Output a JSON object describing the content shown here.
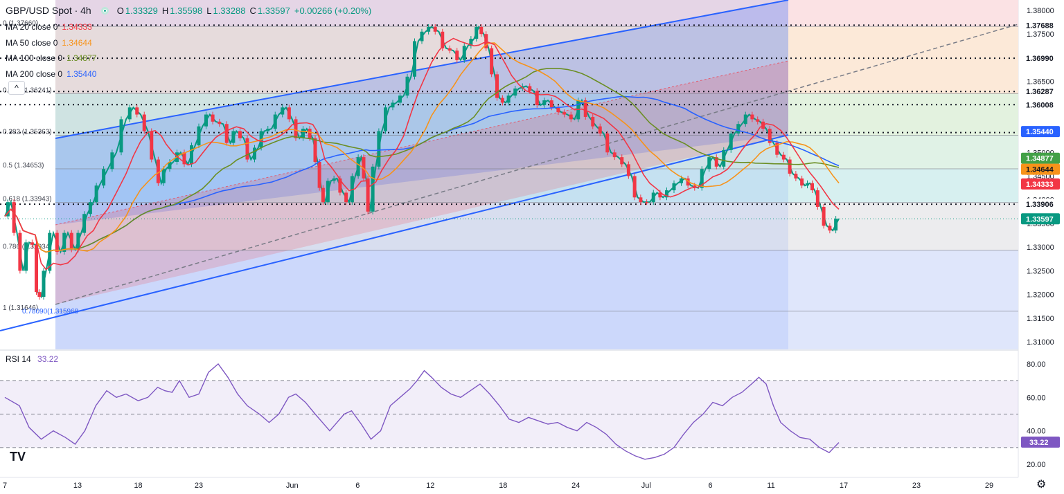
{
  "header": {
    "symbol": "GBP/USD Spot · 4h",
    "ohlc": [
      {
        "k": "O",
        "v": "1.33329"
      },
      {
        "k": "H",
        "v": "1.35598"
      },
      {
        "k": "L",
        "v": "1.33288"
      },
      {
        "k": "C",
        "v": "1.33597"
      },
      {
        "k": "",
        "v": "+0.00266 (+0.20%)"
      }
    ]
  },
  "ma_legend": [
    {
      "label": "MA 20 close 0",
      "value": "1.34333",
      "color": "#f23645"
    },
    {
      "label": "MA 50 close 0",
      "value": "1.34644",
      "color": "#f7931a"
    },
    {
      "label": "MA 100 close 0",
      "value": "1.34877",
      "color": "#6b8e23"
    },
    {
      "label": "MA 200 close 0",
      "value": "1.35440",
      "color": "#2962ff"
    }
  ],
  "rsi_label": {
    "label": "RSI 14",
    "value": "33.22"
  },
  "tv_logo": "TV",
  "collapse_icon": "^",
  "gear_icon": "⚙",
  "chart_data": {
    "type": "candlestick",
    "symbol": "GBP/USD Spot",
    "interval": "4h",
    "price_axis": {
      "min": 1.305,
      "max": 1.3825,
      "ticks": [
        "1.38000",
        "1.37500",
        "1.36500",
        "1.36000",
        "1.35500",
        "1.35000",
        "1.34500",
        "1.34000",
        "1.33500",
        "1.33000",
        "1.32500",
        "1.32000",
        "1.31500",
        "1.31000"
      ]
    },
    "time_ticks": [
      {
        "label": "7",
        "x": 0
      },
      {
        "label": "13",
        "x": 60
      },
      {
        "label": "18",
        "x": 110
      },
      {
        "label": "23",
        "x": 160
      },
      {
        "label": "Jun",
        "x": 237
      },
      {
        "label": "6",
        "x": 291
      },
      {
        "label": "12",
        "x": 351
      },
      {
        "label": "18",
        "x": 411
      },
      {
        "label": "24",
        "x": 471
      },
      {
        "label": "Jul",
        "x": 529
      },
      {
        "label": "6",
        "x": 582
      },
      {
        "label": "11",
        "x": 632
      },
      {
        "label": "17",
        "x": 692
      },
      {
        "label": "23",
        "x": 752
      },
      {
        "label": "29",
        "x": 812
      }
    ],
    "x_range": [
      0,
      850
    ],
    "price_path": [
      [
        0,
        1.3365
      ],
      [
        5,
        1.3395
      ],
      [
        10,
        1.333
      ],
      [
        15,
        1.325
      ],
      [
        20,
        1.331
      ],
      [
        25,
        1.3305
      ],
      [
        27,
        1.3205
      ],
      [
        30,
        1.3195
      ],
      [
        34,
        1.325
      ],
      [
        40,
        1.333
      ],
      [
        46,
        1.329
      ],
      [
        52,
        1.333
      ],
      [
        58,
        1.3295
      ],
      [
        63,
        1.333
      ],
      [
        68,
        1.337
      ],
      [
        73,
        1.3395
      ],
      [
        78,
        1.343
      ],
      [
        85,
        1.3465
      ],
      [
        92,
        1.35
      ],
      [
        100,
        1.357
      ],
      [
        106,
        1.3595
      ],
      [
        112,
        1.358
      ],
      [
        118,
        1.3545
      ],
      [
        124,
        1.3485
      ],
      [
        129,
        1.3435
      ],
      [
        133,
        1.3465
      ],
      [
        139,
        1.348
      ],
      [
        145,
        1.35
      ],
      [
        151,
        1.3475
      ],
      [
        157,
        1.3515
      ],
      [
        163,
        1.3555
      ],
      [
        169,
        1.358
      ],
      [
        174,
        1.3565
      ],
      [
        180,
        1.356
      ],
      [
        186,
        1.352
      ],
      [
        191,
        1.3545
      ],
      [
        197,
        1.353
      ],
      [
        203,
        1.3485
      ],
      [
        209,
        1.351
      ],
      [
        214,
        1.3545
      ],
      [
        220,
        1.355
      ],
      [
        226,
        1.358
      ],
      [
        232,
        1.3595
      ],
      [
        237,
        1.357
      ],
      [
        243,
        1.353
      ],
      [
        249,
        1.355
      ],
      [
        254,
        1.353
      ],
      [
        258,
        1.348
      ],
      [
        261,
        1.3425
      ],
      [
        264,
        1.3395
      ],
      [
        269,
        1.344
      ],
      [
        274,
        1.3445
      ],
      [
        279,
        1.3415
      ],
      [
        284,
        1.3395
      ],
      [
        289,
        1.345
      ],
      [
        294,
        1.349
      ],
      [
        298,
        1.3445
      ],
      [
        301,
        1.3375
      ],
      [
        306,
        1.347
      ],
      [
        311,
        1.3545
      ],
      [
        317,
        1.3595
      ],
      [
        323,
        1.3605
      ],
      [
        329,
        1.362
      ],
      [
        335,
        1.366
      ],
      [
        341,
        1.3735
      ],
      [
        347,
        1.3755
      ],
      [
        352,
        1.3765
      ],
      [
        358,
        1.3755
      ],
      [
        364,
        1.372
      ],
      [
        370,
        1.3715
      ],
      [
        376,
        1.3695
      ],
      [
        382,
        1.3725
      ],
      [
        387,
        1.374
      ],
      [
        391,
        1.3765
      ],
      [
        395,
        1.375
      ],
      [
        399,
        1.372
      ],
      [
        404,
        1.3665
      ],
      [
        408,
        1.3615
      ],
      [
        413,
        1.3605
      ],
      [
        418,
        1.362
      ],
      [
        424,
        1.3635
      ],
      [
        430,
        1.364
      ],
      [
        436,
        1.363
      ],
      [
        442,
        1.36
      ],
      [
        448,
        1.361
      ],
      [
        454,
        1.3595
      ],
      [
        459,
        1.3585
      ],
      [
        464,
        1.358
      ],
      [
        470,
        1.357
      ],
      [
        476,
        1.361
      ],
      [
        482,
        1.3575
      ],
      [
        488,
        1.3555
      ],
      [
        494,
        1.354
      ],
      [
        500,
        1.35
      ],
      [
        506,
        1.349
      ],
      [
        512,
        1.3475
      ],
      [
        517,
        1.345
      ],
      [
        522,
        1.3405
      ],
      [
        527,
        1.3395
      ],
      [
        532,
        1.3395
      ],
      [
        538,
        1.3415
      ],
      [
        543,
        1.3405
      ],
      [
        549,
        1.342
      ],
      [
        555,
        1.3435
      ],
      [
        561,
        1.3445
      ],
      [
        566,
        1.343
      ],
      [
        572,
        1.3425
      ],
      [
        578,
        1.3465
      ],
      [
        584,
        1.349
      ],
      [
        590,
        1.347
      ],
      [
        596,
        1.3505
      ],
      [
        602,
        1.354
      ],
      [
        608,
        1.356
      ],
      [
        614,
        1.358
      ],
      [
        619,
        1.357
      ],
      [
        623,
        1.3565
      ],
      [
        628,
        1.355
      ],
      [
        634,
        1.352
      ],
      [
        640,
        1.3495
      ],
      [
        645,
        1.3485
      ],
      [
        650,
        1.3455
      ],
      [
        655,
        1.3445
      ],
      [
        660,
        1.343
      ],
      [
        664,
        1.3435
      ],
      [
        668,
        1.342
      ],
      [
        673,
        1.3385
      ],
      [
        678,
        1.3345
      ],
      [
        683,
        1.3335
      ],
      [
        688,
        1.336
      ]
    ],
    "ma_series": [
      {
        "name": "MA 20 close 0",
        "value": "1.34333",
        "color": "#f23645"
      },
      {
        "name": "MA 50 close 0",
        "value": "1.34644",
        "color": "#f7931a"
      },
      {
        "name": "MA 100 close 0",
        "value": "1.34877",
        "color": "#6b8e23"
      },
      {
        "name": "MA 200 close 0",
        "value": "1.35440",
        "color": "#2962ff"
      }
    ],
    "fibonacci": {
      "levels": [
        {
          "label": "0 (1.37660)",
          "price": 1.3766,
          "fill": "#fbe2e4"
        },
        {
          "label": "0.236 (1.36241)",
          "price": 1.36241,
          "fill": "#fce9d8"
        },
        {
          "label": "0.382 (1.35363)",
          "price": 1.35363,
          "fill": "#e3f2df"
        },
        {
          "label": "0.5 (1.34653)",
          "price": 1.34653,
          "fill": "#e0f2e6"
        },
        {
          "label": "0.618 (1.33943)",
          "price": 1.33943,
          "fill": "#d7f0f0"
        },
        {
          "label": "0.786 (1.32934)",
          "price": 1.32934,
          "fill": "#ececee"
        },
        {
          "label": "1 (1.31646)",
          "price": 1.31646,
          "fill": "#dfe6fb"
        }
      ],
      "extra_label": "0.78090(1.315968"
    },
    "horizontal_levels": [
      {
        "value": "1.37688",
        "price": 1.37688
      },
      {
        "value": "1.36990",
        "price": 1.3699
      },
      {
        "value": "1.36287",
        "price": 1.36287
      },
      {
        "value": "1.36008",
        "price": 1.36008
      },
      {
        "value": "1.35419",
        "price": 1.35419
      },
      {
        "value": "1.33906",
        "price": 1.33906
      }
    ],
    "price_labels": [
      {
        "value": "1.35440",
        "price": 1.3544,
        "bg": "#2962ff",
        "fg": "#ffffff"
      },
      {
        "value": "1.34877",
        "price": 1.34877,
        "bg": "#43a047",
        "fg": "#ffffff"
      },
      {
        "value": "1.34644",
        "price": 1.34644,
        "bg": "#f7931a",
        "fg": "#131722"
      },
      {
        "value": "1.34333",
        "price": 1.34333,
        "bg": "#f23645",
        "fg": "#ffffff"
      },
      {
        "value": "1.33597",
        "price": 1.33597,
        "bg": "#089981",
        "fg": "#ffffff"
      }
    ],
    "rsi": {
      "name": "RSI 14",
      "current": 33.22,
      "axis_ticks": [
        80,
        60,
        40,
        20
      ],
      "band": [
        30,
        70
      ],
      "middle": 50,
      "path": [
        [
          0,
          60
        ],
        [
          12,
          55
        ],
        [
          20,
          42
        ],
        [
          30,
          35
        ],
        [
          40,
          40
        ],
        [
          50,
          36
        ],
        [
          58,
          32
        ],
        [
          66,
          40
        ],
        [
          75,
          55
        ],
        [
          84,
          64
        ],
        [
          92,
          60
        ],
        [
          100,
          62
        ],
        [
          110,
          58
        ],
        [
          118,
          60
        ],
        [
          126,
          66
        ],
        [
          132,
          64
        ],
        [
          138,
          63
        ],
        [
          144,
          70
        ],
        [
          152,
          60
        ],
        [
          160,
          62
        ],
        [
          168,
          75
        ],
        [
          176,
          80
        ],
        [
          184,
          72
        ],
        [
          192,
          62
        ],
        [
          200,
          55
        ],
        [
          210,
          50
        ],
        [
          218,
          45
        ],
        [
          226,
          50
        ],
        [
          234,
          60
        ],
        [
          240,
          62
        ],
        [
          248,
          57
        ],
        [
          256,
          50
        ],
        [
          262,
          45
        ],
        [
          268,
          40
        ],
        [
          274,
          45
        ],
        [
          280,
          50
        ],
        [
          286,
          52
        ],
        [
          294,
          44
        ],
        [
          302,
          35
        ],
        [
          310,
          40
        ],
        [
          318,
          55
        ],
        [
          326,
          60
        ],
        [
          334,
          65
        ],
        [
          340,
          70
        ],
        [
          346,
          76
        ],
        [
          352,
          72
        ],
        [
          360,
          66
        ],
        [
          368,
          62
        ],
        [
          376,
          60
        ],
        [
          384,
          64
        ],
        [
          392,
          68
        ],
        [
          400,
          62
        ],
        [
          408,
          55
        ],
        [
          416,
          47
        ],
        [
          424,
          45
        ],
        [
          432,
          48
        ],
        [
          440,
          46
        ],
        [
          448,
          44
        ],
        [
          456,
          45
        ],
        [
          464,
          42
        ],
        [
          472,
          40
        ],
        [
          480,
          45
        ],
        [
          488,
          42
        ],
        [
          496,
          38
        ],
        [
          504,
          32
        ],
        [
          512,
          28
        ],
        [
          520,
          25
        ],
        [
          528,
          23
        ],
        [
          536,
          24
        ],
        [
          544,
          26
        ],
        [
          552,
          30
        ],
        [
          560,
          38
        ],
        [
          568,
          45
        ],
        [
          576,
          50
        ],
        [
          584,
          57
        ],
        [
          592,
          55
        ],
        [
          600,
          60
        ],
        [
          608,
          63
        ],
        [
          616,
          68
        ],
        [
          622,
          72
        ],
        [
          628,
          68
        ],
        [
          634,
          55
        ],
        [
          640,
          45
        ],
        [
          648,
          40
        ],
        [
          656,
          36
        ],
        [
          664,
          35
        ],
        [
          672,
          30
        ],
        [
          680,
          27
        ],
        [
          688,
          33
        ]
      ]
    }
  }
}
